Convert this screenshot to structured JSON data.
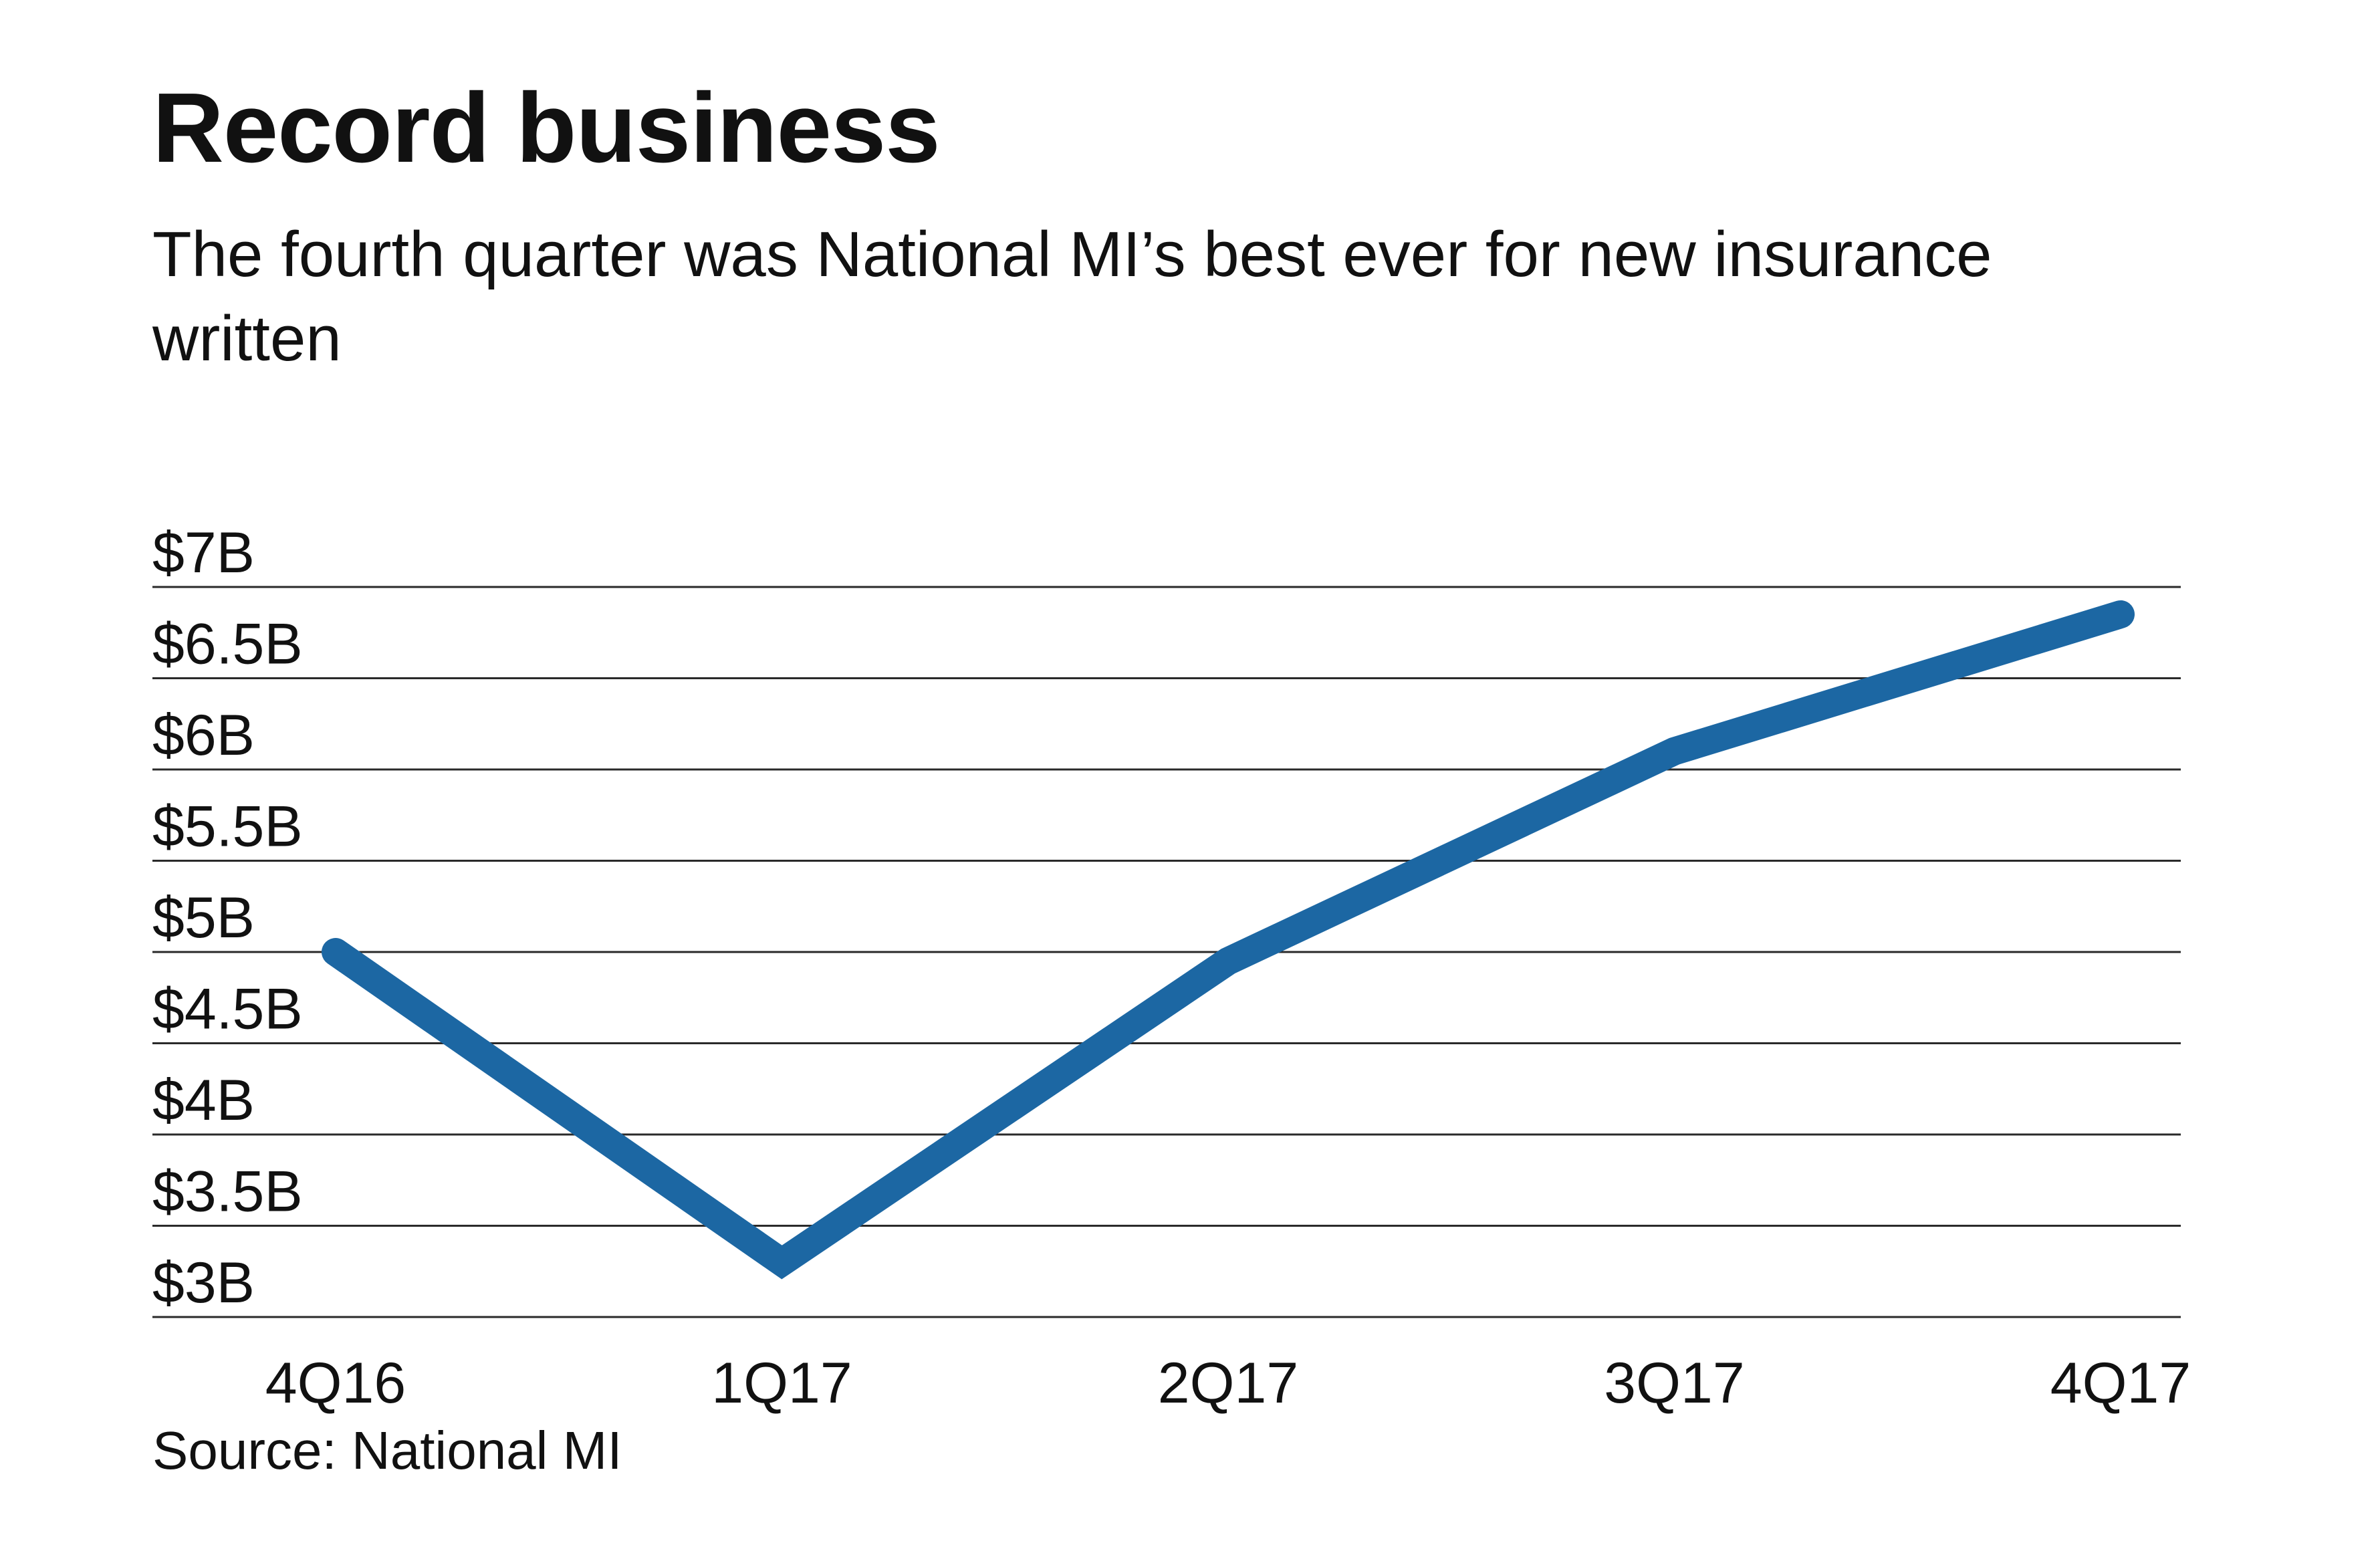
{
  "header": {
    "title": "Record business",
    "subtitle": "The fourth quarter was National MI’s best ever for new insurance written"
  },
  "footer": {
    "source": "Source: National MI"
  },
  "chart_data": {
    "type": "line",
    "title": "Record business",
    "subtitle": "The fourth quarter was National MI’s best ever for new insurance written",
    "xlabel": "",
    "ylabel": "",
    "categories": [
      "4Q16",
      "1Q17",
      "2Q17",
      "3Q17",
      "4Q17"
    ],
    "series": [
      {
        "values": [
          5.0,
          3.3,
          4.95,
          6.1,
          6.85
        ]
      }
    ],
    "ylim": [
      3,
      7
    ],
    "y_ticks": [
      {
        "value": 7,
        "label": "$7B"
      },
      {
        "value": 6.5,
        "label": "$6.5B"
      },
      {
        "value": 6,
        "label": "$6B"
      },
      {
        "value": 5.5,
        "label": "$5.5B"
      },
      {
        "value": 5,
        "label": "$5B"
      },
      {
        "value": 4.5,
        "label": "$4.5B"
      },
      {
        "value": 4,
        "label": "$4B"
      },
      {
        "value": 3.5,
        "label": "$3.5B"
      },
      {
        "value": 3,
        "label": "$3B"
      }
    ],
    "grid": true,
    "legend": "none",
    "line_color": "#1c67a3",
    "grid_color": "#2a2a2a"
  }
}
